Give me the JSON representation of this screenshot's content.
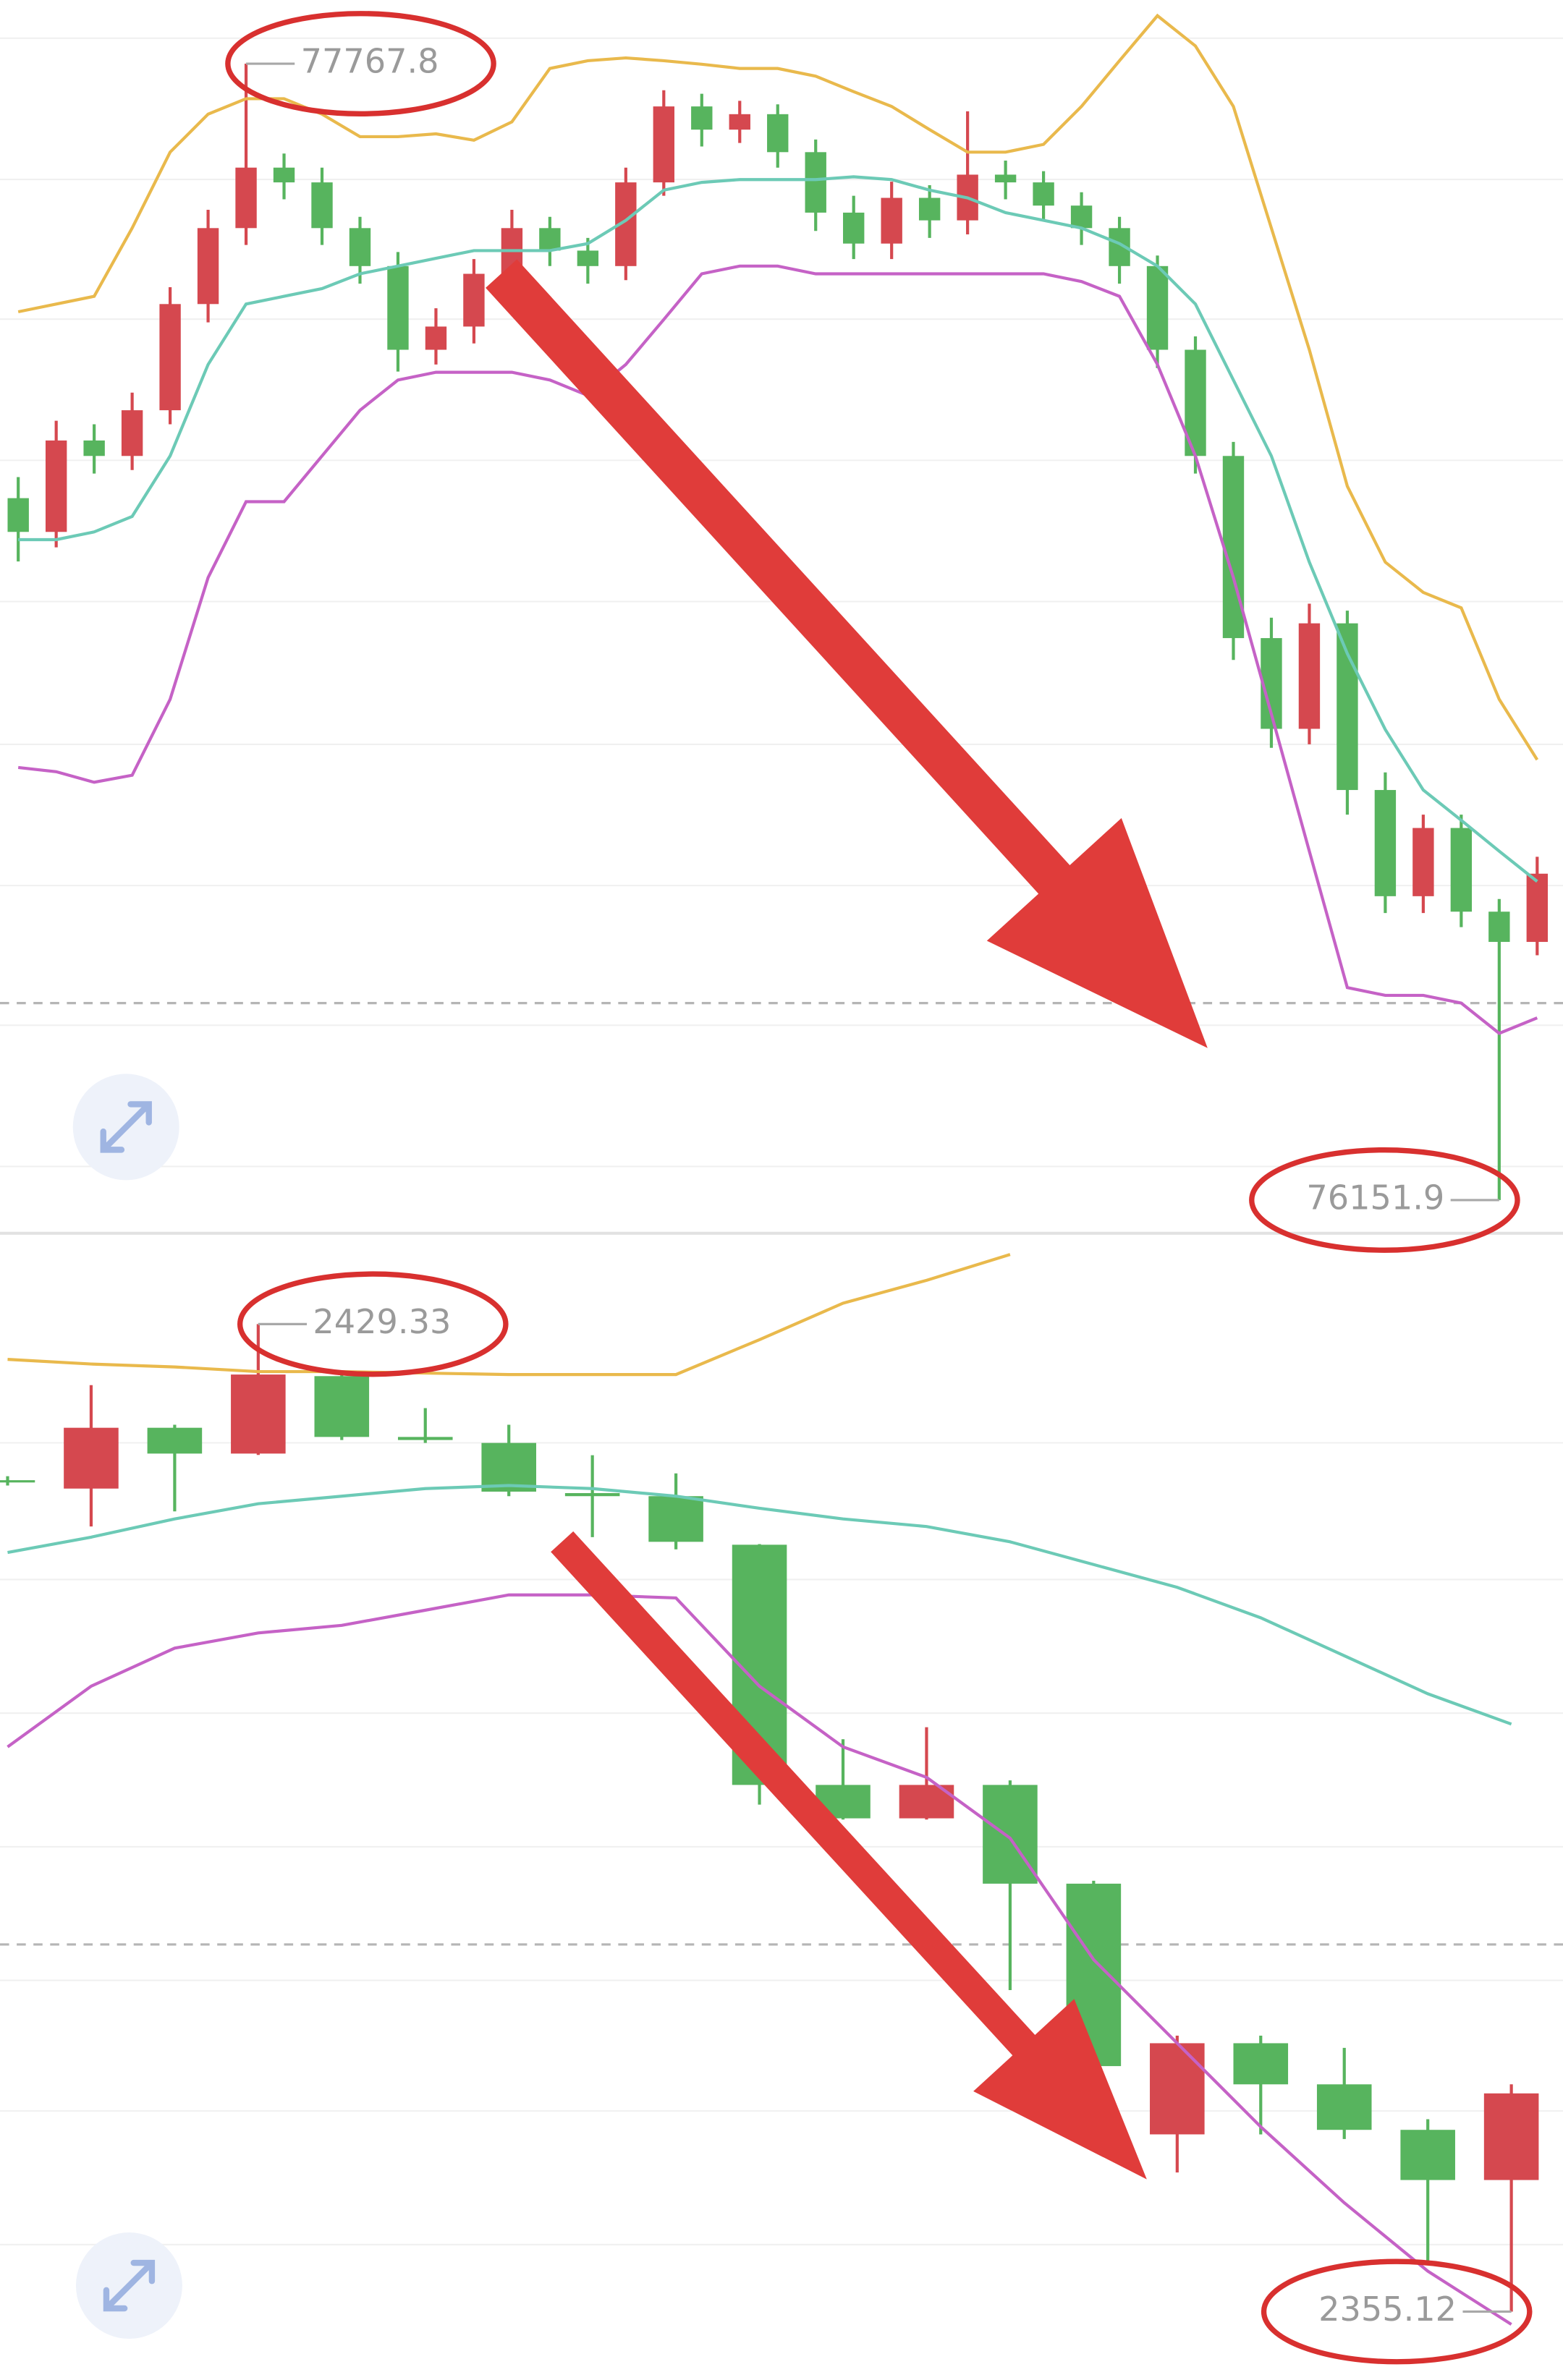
{
  "chart_data": [
    {
      "type": "candlestick",
      "up_color": "#d5484f",
      "down_color": "#57b45e",
      "ylim": [
        76109,
        77858
      ],
      "price_line": 76432,
      "open": [
        77150,
        77102,
        77232,
        77210,
        77275,
        77426,
        77534,
        77620,
        77599,
        77534,
        77480,
        77361,
        77394,
        77469,
        77534,
        77502,
        77480,
        77599,
        77707,
        77674,
        77696,
        77642,
        77556,
        77512,
        77577,
        77545,
        77610,
        77599,
        77566,
        77534,
        77480,
        77361,
        77210,
        76951,
        76822,
        76972,
        76735,
        76584,
        76681,
        76562,
        76519
      ],
      "high": [
        77180,
        77260,
        77255,
        77300,
        77450,
        77560,
        77767.8,
        77640,
        77620,
        77550,
        77500,
        77420,
        77490,
        77560,
        77550,
        77520,
        77620,
        77730,
        77725,
        77715,
        77710,
        77660,
        77580,
        77600,
        77595,
        77700,
        77630,
        77615,
        77585,
        77550,
        77495,
        77380,
        77230,
        76980,
        77000,
        76990,
        76760,
        76700,
        76700,
        76580,
        76640
      ],
      "low": [
        77060,
        77080,
        77185,
        77190,
        77255,
        77400,
        77510,
        77575,
        77510,
        77455,
        77330,
        77340,
        77370,
        77450,
        77480,
        77455,
        77460,
        77580,
        77650,
        77655,
        77620,
        77530,
        77490,
        77490,
        77520,
        77525,
        77575,
        77545,
        77510,
        77455,
        77335,
        77185,
        76920,
        76795,
        76800,
        76700,
        76560,
        76560,
        76540,
        76151.9,
        76500
      ],
      "close": [
        77102,
        77232,
        77210,
        77275,
        77426,
        77534,
        77620,
        77599,
        77534,
        77480,
        77361,
        77394,
        77469,
        77534,
        77502,
        77480,
        77599,
        77707,
        77674,
        77696,
        77642,
        77556,
        77512,
        77577,
        77545,
        77610,
        77599,
        77566,
        77534,
        77480,
        77361,
        77210,
        76951,
        76822,
        76972,
        76735,
        76584,
        76681,
        76562,
        76519,
        76616
      ],
      "series": [
        {
          "color": "#e9b94c",
          "values": [
            77415,
            77426,
            77437,
            77534,
            77642,
            77696,
            77718,
            77718,
            77696,
            77664,
            77664,
            77668,
            77659,
            77685,
            77761,
            77772,
            77776,
            77772,
            77767,
            77761,
            77761,
            77750,
            77728,
            77707,
            77674,
            77642,
            77642,
            77653,
            77707,
            77772,
            77836,
            77793,
            77707,
            77534,
            77361,
            77167,
            77059,
            77016,
            76994,
            76864,
            76778
          ]
        },
        {
          "color": "#6ccab6",
          "values": [
            77091,
            77091,
            77102,
            77124,
            77210,
            77340,
            77426,
            77437,
            77448,
            77469,
            77480,
            77491,
            77502,
            77502,
            77502,
            77512,
            77545,
            77588,
            77599,
            77603,
            77603,
            77603,
            77607,
            77603,
            77588,
            77577,
            77556,
            77545,
            77534,
            77512,
            77480,
            77426,
            77318,
            77210,
            77059,
            76929,
            76821,
            76735,
            76692,
            76648,
            76605
          ]
        },
        {
          "color": "#c562c6",
          "values": [
            76767,
            76761,
            76746,
            76756,
            76864,
            77037,
            77145,
            77145,
            77210,
            77275,
            77318,
            77329,
            77329,
            77329,
            77318,
            77296,
            77340,
            77404,
            77469,
            77480,
            77480,
            77469,
            77469,
            77469,
            77469,
            77469,
            77469,
            77469,
            77458,
            77437,
            77340,
            77210,
            77037,
            76843,
            76648,
            76454,
            76443,
            76443,
            76432,
            76389,
            76411
          ]
        }
      ]
    },
    {
      "type": "candlestick",
      "up_color": "#d5484f",
      "down_color": "#57b45e",
      "ylim": [
        2350.0,
        2434.9
      ],
      "price_line": 2382.71,
      "open": [
        2417.6,
        2416.97,
        2421.54,
        2419.6,
        2425.42,
        2420.85,
        2420.4,
        2416.63,
        2416.4,
        2412.75,
        2394.7,
        2392.19,
        2394.7,
        2387.28,
        2368.44,
        2375.29,
        2372.2,
        2368.78,
        2365.01
      ],
      "high": [
        2417.9,
        2424.74,
        2421.77,
        2429.33,
        2425.6,
        2423.02,
        2421.77,
        2419.48,
        2418.11,
        2412.8,
        2398.13,
        2399.04,
        2395.04,
        2387.5,
        2375.86,
        2375.86,
        2374.94,
        2369.58,
        2372.2
      ],
      "low": [
        2417.2,
        2414.12,
        2415.26,
        2419.5,
        2420.62,
        2420.4,
        2416.4,
        2413.32,
        2412.4,
        2393.22,
        2392.1,
        2392.1,
        2379.28,
        2373.0,
        2365.58,
        2368.44,
        2368.09,
        2358.73,
        2355.12
      ],
      "close": [
        2417.5,
        2421.54,
        2419.6,
        2425.54,
        2420.85,
        2420.62,
        2416.74,
        2416.4,
        2412.97,
        2394.7,
        2392.19,
        2394.7,
        2387.28,
        2373.57,
        2375.29,
        2372.2,
        2368.78,
        2365.01,
        2371.52
      ],
      "series": [
        {
          "color": "#e9b94c",
          "values": [
            2426.68,
            2426.33,
            2426.11,
            2425.76,
            2425.76,
            2425.65,
            2425.54,
            2425.54,
            2425.54,
            2428.16,
            2430.9,
            2432.62,
            2434.56,
            null,
            null,
            null,
            null,
            null,
            null
          ]
        },
        {
          "color": "#6ccab6",
          "values": [
            2412.17,
            2413.32,
            2414.69,
            2415.83,
            2416.4,
            2416.97,
            2417.2,
            2416.97,
            2416.4,
            2415.49,
            2414.69,
            2414.12,
            2412.97,
            2411.26,
            2409.55,
            2407.26,
            2404.41,
            2401.55,
            2399.27
          ]
        },
        {
          "color": "#c562c6",
          "values": [
            2397.56,
            2402.12,
            2404.98,
            2406.12,
            2406.69,
            2407.83,
            2408.98,
            2408.98,
            2408.75,
            2402.12,
            2397.56,
            2395.27,
            2390.7,
            2381.57,
            2375.29,
            2369.01,
            2363.3,
            2358.16,
            2354.16
          ]
        }
      ]
    }
  ]
}
